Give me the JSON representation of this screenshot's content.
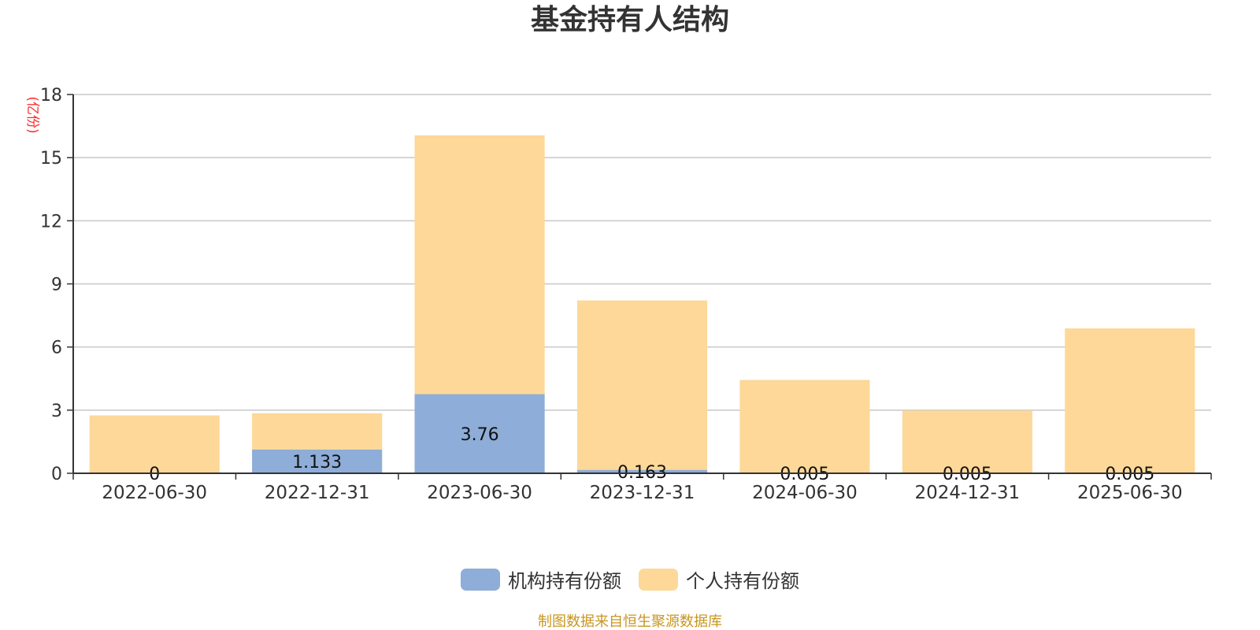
{
  "chart_data": {
    "type": "bar",
    "stacked": true,
    "title": "基金持有人结构",
    "unit_label": "(亿份)",
    "categories": [
      "2022-06-30",
      "2022-12-31",
      "2023-06-30",
      "2023-12-31",
      "2024-06-30",
      "2024-12-31",
      "2025-06-30"
    ],
    "series": [
      {
        "name": "机构持有份额",
        "color": "#8eadd8",
        "values": [
          0,
          1.133,
          3.76,
          0.163,
          0.005,
          0.005,
          0.005
        ],
        "labels": [
          "0",
          "1.133",
          "3.76",
          "0.163",
          "0.005",
          "0.005",
          "0.005"
        ]
      },
      {
        "name": "个人持有份额",
        "color": "#fdd898",
        "values": [
          2.75,
          1.72,
          12.3,
          8.05,
          4.43,
          2.98,
          6.88
        ]
      }
    ],
    "yticks": [
      "0",
      "3",
      "6",
      "9",
      "12",
      "15",
      "18"
    ],
    "ylim": [
      0,
      18
    ],
    "grid": true,
    "legend_position": "bottom-center"
  },
  "source_note": "制图数据来自恒生聚源数据库"
}
